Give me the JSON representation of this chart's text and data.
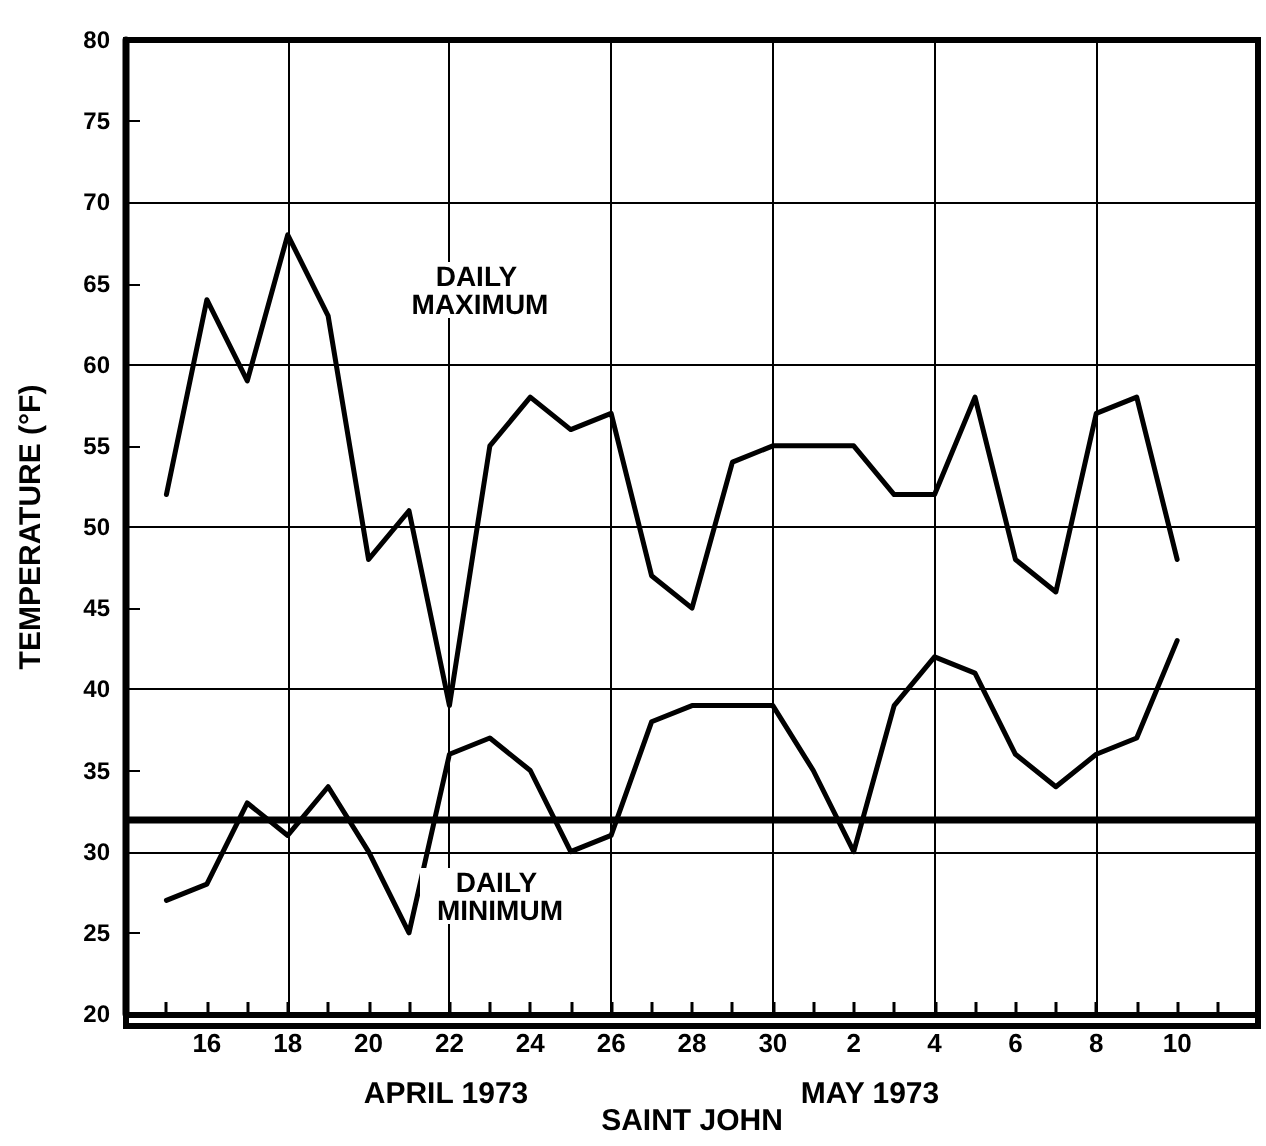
{
  "chart_data": {
    "type": "line",
    "xlabel": "SAINT JOHN",
    "ylabel": "TEMPERATURE (°F)",
    "x": [
      "1973-04-15",
      "1973-04-16",
      "1973-04-17",
      "1973-04-18",
      "1973-04-19",
      "1973-04-20",
      "1973-04-21",
      "1973-04-22",
      "1973-04-23",
      "1973-04-24",
      "1973-04-25",
      "1973-04-26",
      "1973-04-27",
      "1973-04-28",
      "1973-04-29",
      "1973-04-30",
      "1973-05-01",
      "1973-05-02",
      "1973-05-03",
      "1973-05-04",
      "1973-05-05",
      "1973-05-06",
      "1973-05-07",
      "1973-05-08",
      "1973-05-09",
      "1973-05-10"
    ],
    "series": [
      {
        "color": "#000000",
        "values": [
          52,
          64,
          59,
          68,
          63,
          48,
          51,
          39,
          55,
          58,
          56,
          57,
          47,
          45,
          54,
          55,
          55,
          55,
          52,
          52,
          58,
          48,
          46,
          57,
          58,
          48
        ]
      },
      {
        "color": "#000000",
        "values": [
          27,
          28,
          33,
          31,
          34,
          30,
          25,
          36,
          37,
          35,
          30,
          31,
          38,
          39,
          39,
          39,
          35,
          30,
          39,
          42,
          41,
          36,
          34,
          36,
          37,
          43
        ]
      }
    ],
    "xlim": [
      "1973-04-14",
      "1973-05-12"
    ],
    "xticks": [
      {
        "value": "1973-04-15",
        "label": null
      },
      {
        "value": "1973-04-16",
        "label": "16"
      },
      {
        "value": "1973-04-17",
        "label": null
      },
      {
        "value": "1973-04-18",
        "label": "18"
      },
      {
        "value": "1973-04-19",
        "label": null
      },
      {
        "value": "1973-04-20",
        "label": "20"
      },
      {
        "value": "1973-04-21",
        "label": null
      },
      {
        "value": "1973-04-22",
        "label": "22"
      },
      {
        "value": "1973-04-23",
        "label": null
      },
      {
        "value": "1973-04-24",
        "label": "24"
      },
      {
        "value": "1973-04-25",
        "label": null
      },
      {
        "value": "1973-04-26",
        "label": "26"
      },
      {
        "value": "1973-04-27",
        "label": null
      },
      {
        "value": "1973-04-28",
        "label": "28"
      },
      {
        "value": "1973-04-29",
        "label": null
      },
      {
        "value": "1973-04-30",
        "label": "30"
      },
      {
        "value": "1973-05-01",
        "label": null
      },
      {
        "value": "1973-05-02",
        "label": "2"
      },
      {
        "value": "1973-05-03",
        "label": null
      },
      {
        "value": "1973-05-04",
        "label": "4"
      },
      {
        "value": "1973-05-05",
        "label": null
      },
      {
        "value": "1973-05-06",
        "label": "6"
      },
      {
        "value": "1973-05-07",
        "label": null
      },
      {
        "value": "1973-05-08",
        "label": "8"
      },
      {
        "value": "1973-05-09",
        "label": null
      },
      {
        "value": "1973-05-10",
        "label": "10"
      },
      {
        "value": "1973-05-11",
        "label": null
      }
    ],
    "ylim": [
      20,
      80
    ],
    "yticks": [
      20,
      25,
      30,
      35,
      40,
      45,
      50,
      55,
      60,
      65,
      70,
      75,
      80
    ],
    "grid": true,
    "marker": "none",
    "line_style": "solid",
    "ref_lines": [
      {
        "axis": "y",
        "value": 32,
        "color": "#000000"
      }
    ],
    "annotations": [
      "DAILY MAXIMUM",
      "DAILY MINIMUM",
      "APRIL 1973",
      "MAY 1973"
    ]
  }
}
